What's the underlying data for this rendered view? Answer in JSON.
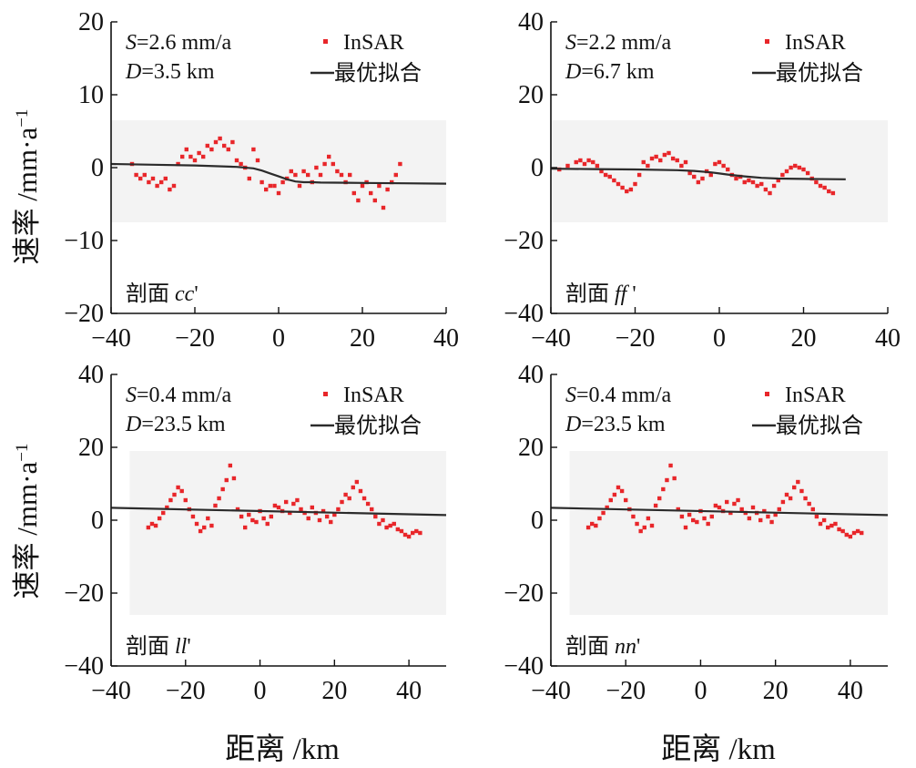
{
  "figure": {
    "ylabel_main": "速率 /mm·a",
    "ylabel_sup": "−1",
    "xlabel": "距离 /km"
  },
  "legend": {
    "insar": "InSAR",
    "fit": "最优拟合"
  },
  "colors": {
    "insar": "#e8262a",
    "fit": "#2b2b2b",
    "band": "#f3f3f3",
    "axis": "#111111"
  },
  "chart_data": [
    {
      "type": "scatter",
      "profile_prefix": "剖面",
      "profile_name": "cc",
      "profile_suffix": "'",
      "s_sym": "S",
      "s_text": "=2.6 mm/a",
      "d_sym": "D",
      "d_text": "=3.5 km",
      "xlim": [
        -40,
        40
      ],
      "ylim": [
        -20,
        20
      ],
      "xticks": [
        -40,
        -20,
        0,
        20,
        40
      ],
      "xtick_labels": [
        "−40",
        "−20",
        "0",
        "20",
        "40"
      ],
      "yticks": [
        -20,
        -10,
        0,
        10,
        20
      ],
      "ytick_labels": [
        "−20",
        "−10",
        "0",
        "10",
        "20"
      ],
      "band": [
        -40,
        40,
        -7.5,
        6.5
      ],
      "series": [
        {
          "name": "InSAR",
          "x": [
            -35,
            -34,
            -33,
            -32,
            -31,
            -30,
            -29,
            -28,
            -27,
            -26,
            -25,
            -24,
            -23,
            -22,
            -21,
            -20,
            -19,
            -18,
            -17,
            -16,
            -15,
            -14,
            -13,
            -12,
            -11,
            -10,
            -9,
            -8,
            -7,
            -6,
            -5,
            -4,
            -3,
            -2,
            -1,
            0,
            1,
            2,
            3,
            4,
            5,
            6,
            7,
            8,
            9,
            10,
            11,
            12,
            13,
            14,
            15,
            16,
            17,
            18,
            19,
            20,
            21,
            22,
            23,
            24,
            25,
            26,
            27,
            28,
            29
          ],
          "y": [
            0.5,
            -1.0,
            -1.5,
            -1.0,
            -2.0,
            -1.5,
            -2.5,
            -2.0,
            -1.5,
            -3.0,
            -2.5,
            0.5,
            1.5,
            2.5,
            1.5,
            1.0,
            2.0,
            1.5,
            3.0,
            2.5,
            3.5,
            4.0,
            3.0,
            2.5,
            3.5,
            1.0,
            0.5,
            0.0,
            -1.5,
            2.5,
            1.0,
            -2.0,
            -3.0,
            -2.5,
            -2.5,
            -3.5,
            -2.0,
            -1.5,
            -0.5,
            -1.0,
            -2.5,
            -0.5,
            -1.0,
            -2.0,
            0.0,
            -1.0,
            0.5,
            1.5,
            0.5,
            -0.5,
            -1.0,
            -2.0,
            -1.0,
            -3.5,
            -4.5,
            -2.5,
            -2.0,
            -3.5,
            -4.5,
            -2.5,
            -5.5,
            -3.0,
            -2.0,
            -1.0,
            0.5
          ]
        },
        {
          "name": "最优拟合",
          "x": [
            -40,
            -30,
            -20,
            -10,
            -6,
            -4,
            -2,
            0,
            2,
            4,
            6,
            8,
            10,
            20,
            30,
            40
          ],
          "y": [
            0.5,
            0.4,
            0.3,
            0.1,
            -0.1,
            -0.4,
            -0.8,
            -1.2,
            -1.6,
            -1.9,
            -2.0,
            -2.0,
            -2.05,
            -2.1,
            -2.15,
            -2.2
          ]
        }
      ]
    },
    {
      "type": "scatter",
      "profile_prefix": "剖面",
      "profile_name": "ff",
      "profile_suffix": " '",
      "s_sym": "S",
      "s_text": "=2.2 mm/a",
      "d_sym": "D",
      "d_text": "=6.7 km",
      "xlim": [
        -40,
        40
      ],
      "ylim": [
        -40,
        40
      ],
      "xticks": [
        -40,
        -20,
        0,
        20,
        40
      ],
      "xtick_labels": [
        "−40",
        "−20",
        "0",
        "20",
        "40"
      ],
      "yticks": [
        -40,
        -20,
        0,
        20,
        40
      ],
      "ytick_labels": [
        "−40",
        "−20",
        "0",
        "20",
        "40"
      ],
      "band": [
        -40,
        40,
        -15,
        13
      ],
      "series": [
        {
          "name": "InSAR",
          "x": [
            -38,
            -36,
            -34,
            -33,
            -32,
            -31,
            -30,
            -29,
            -28,
            -27,
            -26,
            -25,
            -24,
            -23,
            -22,
            -21,
            -20,
            -19,
            -18,
            -17,
            -16,
            -15,
            -14,
            -13,
            -12,
            -11,
            -10,
            -9,
            -8,
            -7,
            -6,
            -5,
            -4,
            -3,
            -2,
            -1,
            0,
            1,
            2,
            3,
            4,
            5,
            6,
            7,
            8,
            9,
            10,
            11,
            12,
            13,
            14,
            15,
            16,
            17,
            18,
            19,
            20,
            21,
            22,
            23,
            24,
            25,
            26,
            27
          ],
          "y": [
            -0.5,
            0.5,
            1.5,
            2.0,
            1.0,
            2.0,
            1.5,
            0.5,
            -1.0,
            -2.0,
            -2.5,
            -3.5,
            -4.5,
            -5.5,
            -6.5,
            -6.0,
            -4.5,
            -2.0,
            1.5,
            0.5,
            2.5,
            3.0,
            2.0,
            3.5,
            4.0,
            2.5,
            2.0,
            0.5,
            1.5,
            -1.5,
            -2.5,
            -4.0,
            -3.0,
            -1.0,
            -2.0,
            1.0,
            1.5,
            0.5,
            -0.5,
            -2.0,
            -3.0,
            -2.5,
            -4.0,
            -3.5,
            -4.0,
            -5.0,
            -4.5,
            -6.0,
            -7.0,
            -5.0,
            -3.5,
            -2.0,
            -1.0,
            0.0,
            0.5,
            0.0,
            -0.5,
            -1.5,
            -3.0,
            -4.0,
            -5.0,
            -5.5,
            -6.5,
            -7.0
          ]
        },
        {
          "name": "最优拟合",
          "x": [
            -40,
            -30,
            -20,
            -10,
            -6,
            -2,
            0,
            2,
            6,
            10,
            14,
            20,
            30
          ],
          "y": [
            -0.3,
            -0.4,
            -0.5,
            -0.7,
            -0.9,
            -1.3,
            -1.6,
            -1.9,
            -2.4,
            -2.8,
            -3.0,
            -3.1,
            -3.2
          ]
        }
      ]
    },
    {
      "type": "scatter",
      "profile_prefix": "剖面",
      "profile_name": "ll",
      "profile_suffix": "'",
      "s_sym": "S",
      "s_text": "=0.4 mm/a",
      "d_sym": "D",
      "d_text": "=23.5 km",
      "xlim": [
        -40,
        50
      ],
      "ylim": [
        -40,
        40
      ],
      "xticks": [
        -40,
        -20,
        0,
        20,
        40
      ],
      "xtick_labels": [
        "−40",
        "−20",
        "0",
        "20",
        "40"
      ],
      "yticks": [
        -40,
        -20,
        0,
        20,
        40
      ],
      "ytick_labels": [
        "−40",
        "−20",
        "0",
        "20",
        "40"
      ],
      "band": [
        -35,
        50,
        -26,
        19
      ],
      "series": [
        {
          "name": "InSAR",
          "x": [
            -30,
            -29,
            -28,
            -27,
            -26,
            -25,
            -24,
            -23,
            -22,
            -21,
            -20,
            -19,
            -18,
            -17,
            -16,
            -15,
            -14,
            -13,
            -12,
            -11,
            -10,
            -9,
            -8,
            -7,
            -6,
            -5,
            -4,
            -3,
            -2,
            -1,
            0,
            1,
            2,
            3,
            4,
            5,
            6,
            7,
            8,
            9,
            10,
            11,
            12,
            13,
            14,
            15,
            16,
            17,
            18,
            19,
            20,
            21,
            22,
            23,
            24,
            25,
            26,
            27,
            28,
            29,
            30,
            31,
            32,
            33,
            34,
            35,
            36,
            37,
            38,
            39,
            40,
            41,
            42,
            43
          ],
          "y": [
            -2.0,
            -1.0,
            -1.5,
            0.5,
            2.0,
            3.5,
            5.5,
            7.0,
            9.0,
            8.0,
            5.5,
            3.0,
            1.0,
            -1.0,
            -3.0,
            -2.0,
            0.5,
            -1.5,
            4.0,
            6.0,
            8.5,
            11.0,
            15.0,
            11.5,
            3.0,
            1.0,
            -2.0,
            1.5,
            0.0,
            -0.5,
            2.5,
            0.5,
            -1.0,
            1.0,
            4.0,
            3.5,
            2.5,
            5.0,
            2.0,
            4.5,
            5.5,
            3.0,
            2.0,
            0.5,
            3.5,
            2.0,
            0.0,
            2.5,
            1.0,
            -0.5,
            1.5,
            3.0,
            5.0,
            7.0,
            6.0,
            9.0,
            10.5,
            8.0,
            6.0,
            4.5,
            3.0,
            1.0,
            -1.0,
            0.0,
            -2.0,
            -1.5,
            -1.0,
            -2.5,
            -3.0,
            -4.0,
            -4.5,
            -3.5,
            -3.0,
            -3.5
          ]
        },
        {
          "name": "最优拟合",
          "x": [
            -40,
            50
          ],
          "y": [
            3.4,
            1.4
          ]
        }
      ]
    },
    {
      "type": "scatter",
      "profile_prefix": "剖面",
      "profile_name": "nn",
      "profile_suffix": "'",
      "s_sym": "S",
      "s_text": "=0.4 mm/a",
      "d_sym": "D",
      "d_text": "=23.5 km",
      "xlim": [
        -40,
        50
      ],
      "ylim": [
        -40,
        40
      ],
      "xticks": [
        -40,
        -20,
        0,
        20,
        40
      ],
      "xtick_labels": [
        "−40",
        "−20",
        "0",
        "20",
        "40"
      ],
      "yticks": [
        -40,
        -20,
        0,
        20,
        40
      ],
      "ytick_labels": [
        "−40",
        "−20",
        "0",
        "20",
        "40"
      ],
      "band": [
        -35,
        50,
        -26,
        19
      ],
      "series": [
        {
          "name": "InSAR",
          "x": [
            -30,
            -29,
            -28,
            -27,
            -26,
            -25,
            -24,
            -23,
            -22,
            -21,
            -20,
            -19,
            -18,
            -17,
            -16,
            -15,
            -14,
            -13,
            -12,
            -11,
            -10,
            -9,
            -8,
            -7,
            -6,
            -5,
            -4,
            -3,
            -2,
            -1,
            0,
            1,
            2,
            3,
            4,
            5,
            6,
            7,
            8,
            9,
            10,
            11,
            12,
            13,
            14,
            15,
            16,
            17,
            18,
            19,
            20,
            21,
            22,
            23,
            24,
            25,
            26,
            27,
            28,
            29,
            30,
            31,
            32,
            33,
            34,
            35,
            36,
            37,
            38,
            39,
            40,
            41,
            42,
            43
          ],
          "y": [
            -2.0,
            -1.0,
            -1.5,
            0.5,
            2.0,
            3.5,
            5.5,
            7.0,
            9.0,
            8.0,
            5.5,
            3.0,
            1.0,
            -1.0,
            -3.0,
            -2.0,
            0.5,
            -1.5,
            4.0,
            6.0,
            8.5,
            11.0,
            15.0,
            11.5,
            3.0,
            1.0,
            -2.0,
            1.5,
            0.0,
            -0.5,
            2.5,
            0.5,
            -1.0,
            1.0,
            4.0,
            3.5,
            2.5,
            5.0,
            2.0,
            4.5,
            5.5,
            3.0,
            2.0,
            0.5,
            3.5,
            2.0,
            0.0,
            2.5,
            1.0,
            -0.5,
            1.5,
            3.0,
            5.0,
            7.0,
            6.0,
            9.0,
            10.5,
            8.0,
            6.0,
            4.5,
            3.0,
            1.0,
            -1.0,
            0.0,
            -2.0,
            -1.5,
            -1.0,
            -2.5,
            -3.0,
            -4.0,
            -4.5,
            -3.5,
            -3.0,
            -3.5
          ]
        },
        {
          "name": "最优拟合",
          "x": [
            -40,
            50
          ],
          "y": [
            3.4,
            1.4
          ]
        }
      ]
    }
  ]
}
